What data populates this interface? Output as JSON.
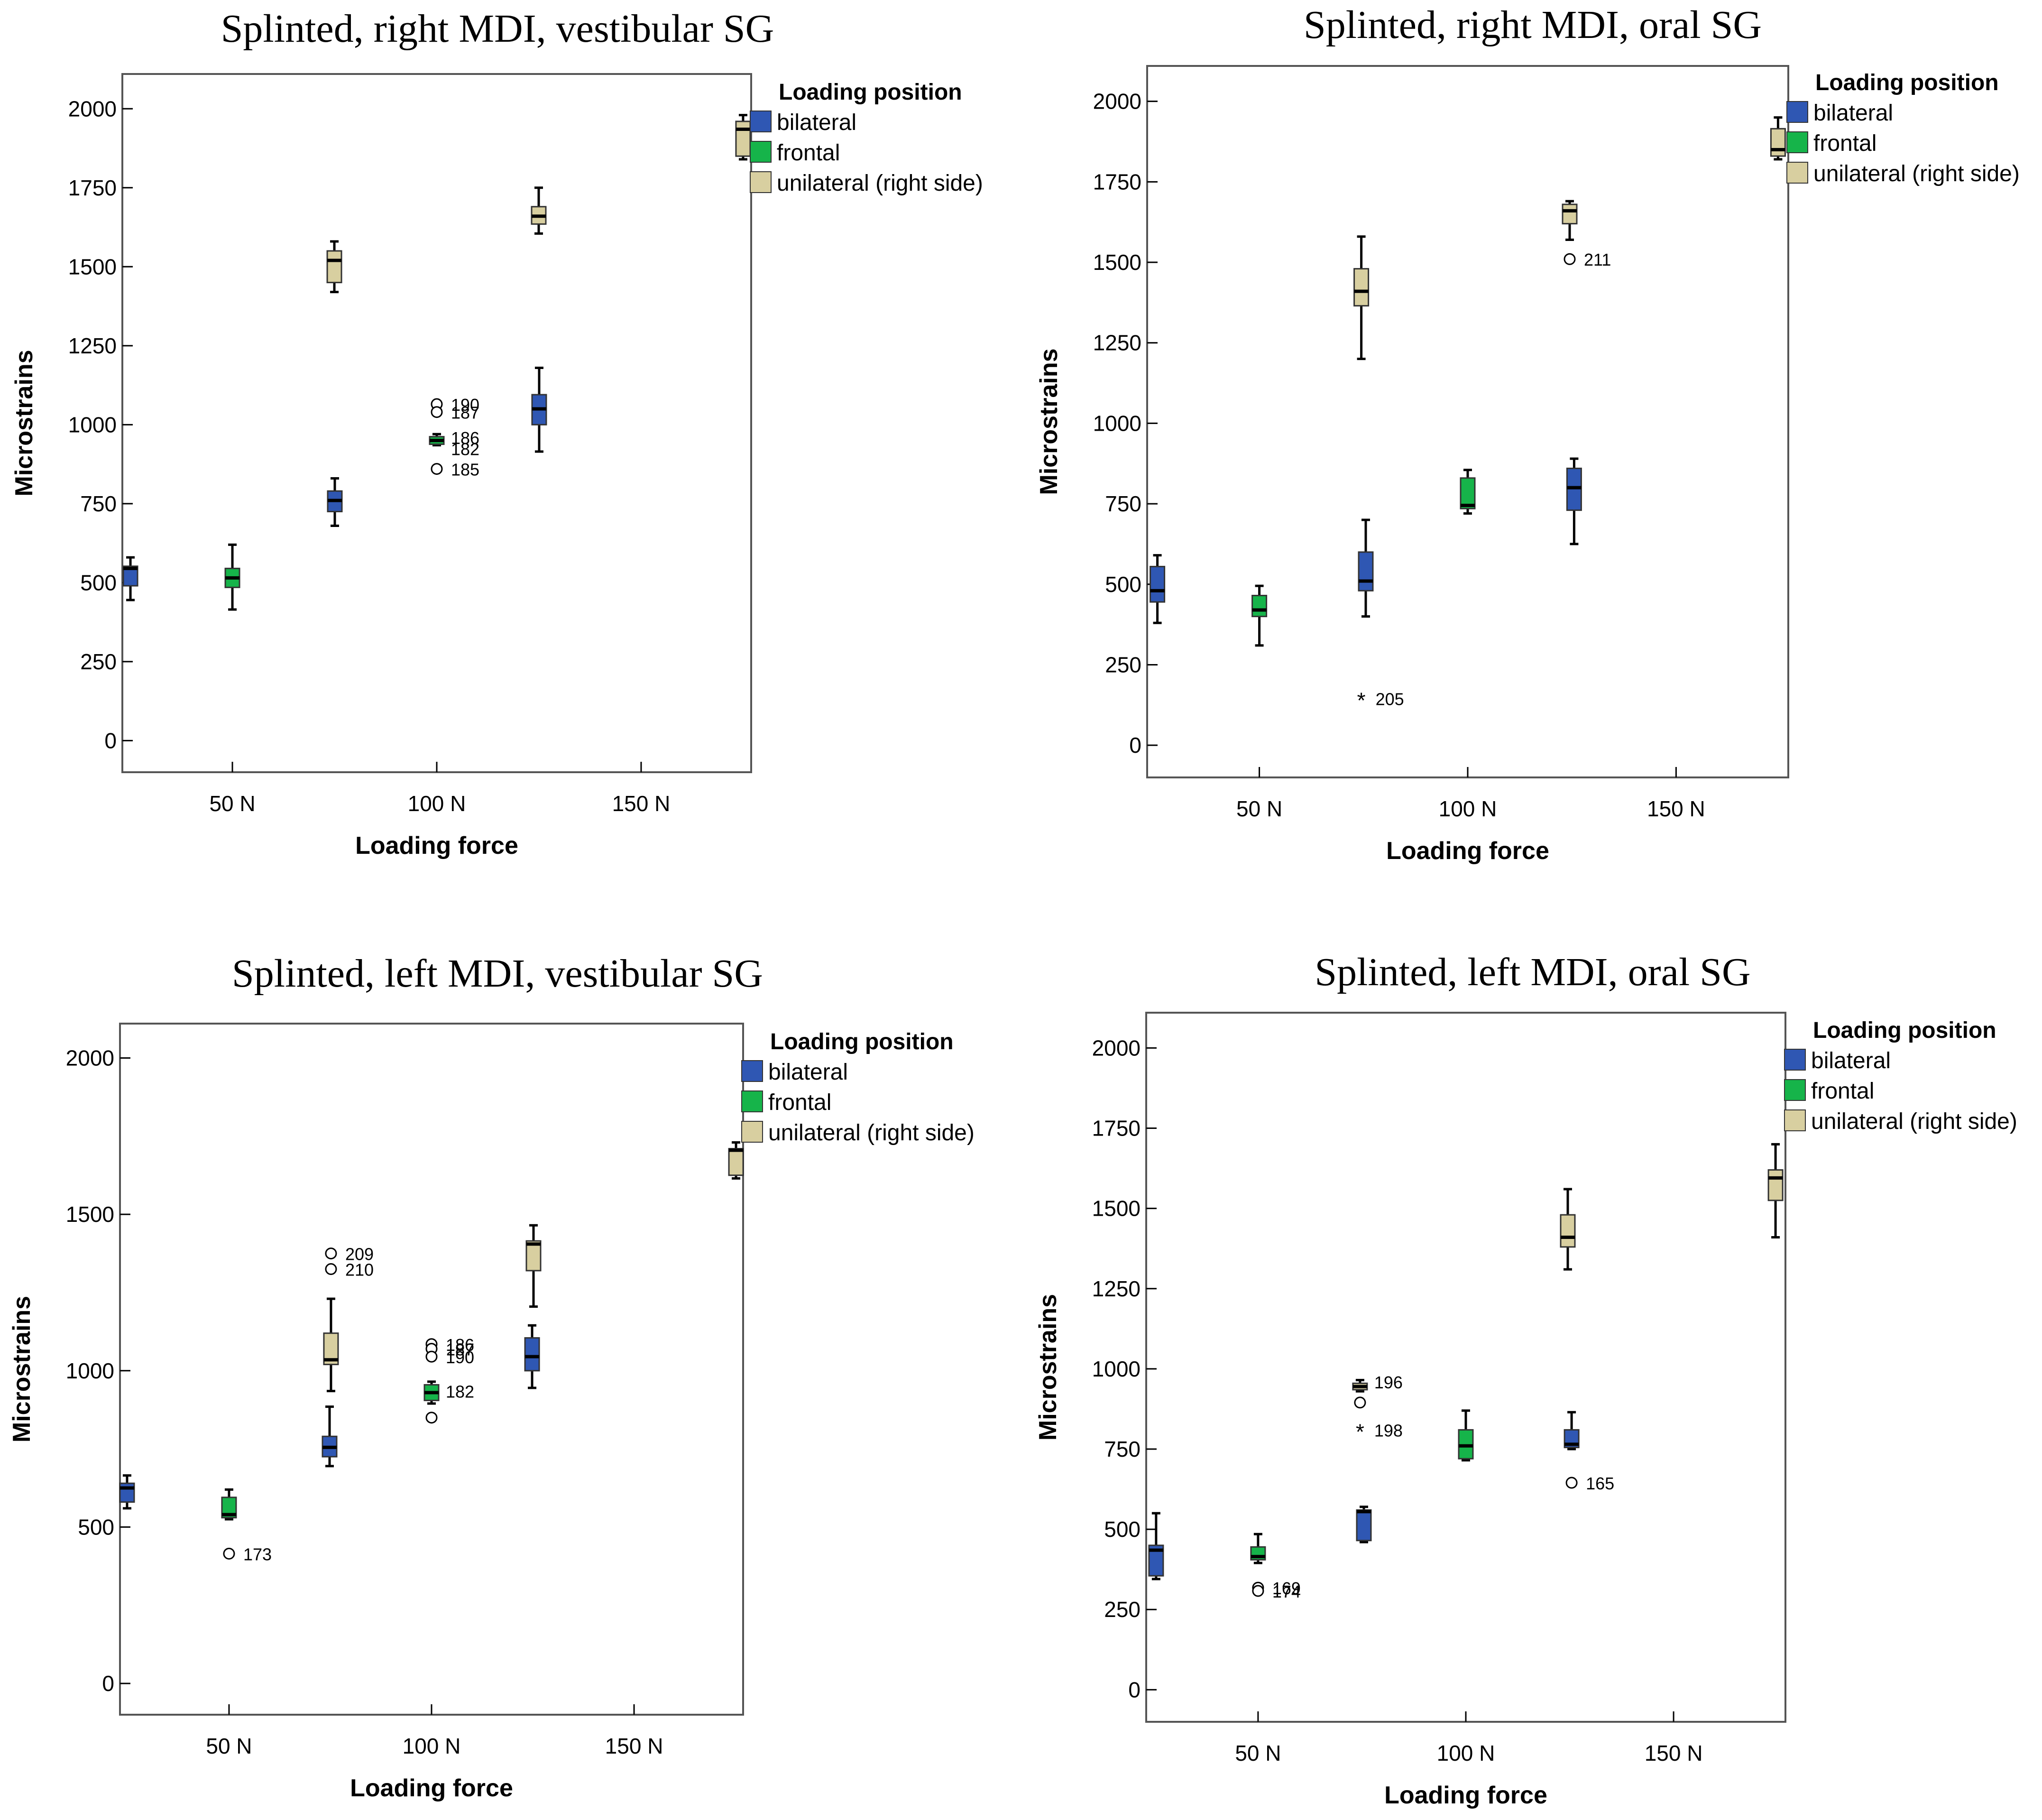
{
  "legend_title": "Loading position",
  "y_axis_label": "Microstrains",
  "x_axis_label": "Loading force",
  "colors": {
    "bilateral": "#2f57b3",
    "frontal": "#16b44a",
    "unilateral": "#d8cfa0",
    "frame": "#555555"
  },
  "chart_data": [
    {
      "type": "box",
      "title": "Splinted, right MDI, vestibular SG",
      "xlabel": "Loading force",
      "ylabel": "Microstrains",
      "categories": [
        "50 N",
        "100 N",
        "150 N"
      ],
      "yticks": [
        0,
        250,
        500,
        750,
        1000,
        1250,
        1500,
        1750,
        2000
      ],
      "ylim": [
        -100,
        2110
      ],
      "legend": {
        "title": "Loading position",
        "entries": [
          "bilateral",
          "frontal",
          "unilateral  (right side)"
        ]
      },
      "series": [
        {
          "name": "bilateral",
          "boxes": [
            {
              "category": "50 N",
              "min": 445,
              "q1": 490,
              "median": 545,
              "q3": 552,
              "max": 580
            },
            {
              "category": "100 N",
              "min": 680,
              "q1": 725,
              "median": 760,
              "q3": 790,
              "max": 830
            },
            {
              "category": "150 N",
              "min": 915,
              "q1": 1000,
              "median": 1050,
              "q3": 1095,
              "max": 1180
            }
          ]
        },
        {
          "name": "frontal",
          "boxes": [
            {
              "category": "50 N",
              "min": 415,
              "q1": 485,
              "median": 515,
              "q3": 545,
              "max": 620
            },
            {
              "category": "100 N",
              "min": 935,
              "q1": 938,
              "median": 950,
              "q3": 962,
              "max": 970,
              "outliers": [
                {
                  "value": 1065,
                  "label": "190",
                  "marker": "circle"
                },
                {
                  "value": 1040,
                  "label": "187",
                  "marker": "circle"
                },
                {
                  "value": 960,
                  "label": "186",
                  "marker": "none"
                },
                {
                  "value": 925,
                  "label": "182",
                  "marker": "none"
                },
                {
                  "value": 860,
                  "label": "185",
                  "marker": "circle"
                }
              ]
            }
          ]
        },
        {
          "name": "unilateral  (right side)",
          "boxes": [
            {
              "category": "50 N",
              "min": 1420,
              "q1": 1450,
              "median": 1520,
              "q3": 1550,
              "max": 1580
            },
            {
              "category": "100 N",
              "min": 1605,
              "q1": 1635,
              "median": 1660,
              "q3": 1690,
              "max": 1750
            },
            {
              "category": "150 N",
              "min": 1840,
              "q1": 1850,
              "median": 1935,
              "q3": 1960,
              "max": 1980
            }
          ]
        }
      ]
    },
    {
      "type": "box",
      "title": "Splinted, right MDI, oral SG",
      "xlabel": "Loading force",
      "ylabel": "Microstrains",
      "categories": [
        "50 N",
        "100 N",
        "150 N"
      ],
      "yticks": [
        0,
        250,
        500,
        750,
        1000,
        1250,
        1500,
        1750,
        2000
      ],
      "ylim": [
        -100,
        2110
      ],
      "legend": {
        "title": "Loading position",
        "entries": [
          "bilateral",
          "frontal",
          "unilateral  (right side)"
        ]
      },
      "series": [
        {
          "name": "bilateral",
          "boxes": [
            {
              "category": "50 N",
              "min": 380,
              "q1": 445,
              "median": 480,
              "q3": 555,
              "max": 590
            },
            {
              "category": "100 N",
              "min": 400,
              "q1": 480,
              "median": 510,
              "q3": 600,
              "max": 700
            },
            {
              "category": "150 N",
              "min": 625,
              "q1": 730,
              "median": 800,
              "q3": 860,
              "max": 890
            }
          ]
        },
        {
          "name": "frontal",
          "boxes": [
            {
              "category": "50 N",
              "min": 310,
              "q1": 400,
              "median": 420,
              "q3": 465,
              "max": 495
            },
            {
              "category": "100 N",
              "min": 720,
              "q1": 735,
              "median": 745,
              "q3": 830,
              "max": 855
            }
          ]
        },
        {
          "name": "unilateral  (right side)",
          "boxes": [
            {
              "category": "50 N",
              "min": 1200,
              "q1": 1365,
              "median": 1410,
              "q3": 1480,
              "max": 1580,
              "outliers": [
                {
                  "value": 145,
                  "label": "205",
                  "marker": "star"
                }
              ]
            },
            {
              "category": "100 N",
              "min": 1570,
              "q1": 1620,
              "median": 1660,
              "q3": 1680,
              "max": 1690,
              "outliers": [
                {
                  "value": 1510,
                  "label": "211",
                  "marker": "circle"
                }
              ]
            },
            {
              "category": "150 N",
              "min": 1820,
              "q1": 1830,
              "median": 1850,
              "q3": 1915,
              "max": 1950
            }
          ]
        }
      ]
    },
    {
      "type": "box",
      "title": "Splinted, left MDI, vestibular SG",
      "xlabel": "Loading force",
      "ylabel": "Microstrains",
      "categories": [
        "50 N",
        "100 N",
        "150 N"
      ],
      "yticks": [
        0,
        500,
        1000,
        1500,
        2000
      ],
      "ylim": [
        -100,
        2110
      ],
      "legend": {
        "title": "Loading position",
        "entries": [
          "bilateral",
          "frontal",
          "unilateral  (right side)"
        ]
      },
      "series": [
        {
          "name": "bilateral",
          "boxes": [
            {
              "category": "50 N",
              "min": 560,
              "q1": 580,
              "median": 625,
              "q3": 640,
              "max": 665
            },
            {
              "category": "100 N",
              "min": 695,
              "q1": 725,
              "median": 755,
              "q3": 790,
              "max": 885
            },
            {
              "category": "150 N",
              "min": 945,
              "q1": 1000,
              "median": 1045,
              "q3": 1105,
              "max": 1145
            }
          ]
        },
        {
          "name": "frontal",
          "boxes": [
            {
              "category": "50 N",
              "min": 525,
              "q1": 530,
              "median": 540,
              "q3": 595,
              "max": 620,
              "outliers": [
                {
                  "value": 415,
                  "label": "173",
                  "marker": "circle"
                }
              ]
            },
            {
              "category": "100 N",
              "min": 895,
              "q1": 905,
              "median": 930,
              "q3": 955,
              "max": 965,
              "outliers": [
                {
                  "value": 1085,
                  "label": "186",
                  "marker": "circle"
                },
                {
                  "value": 1070,
                  "label": "187",
                  "marker": "circle"
                },
                {
                  "value": 1045,
                  "label": "190",
                  "marker": "circle"
                },
                {
                  "value": 935,
                  "label": "182",
                  "marker": "none"
                },
                {
                  "value": 850,
                  "label": "",
                  "marker": "circle"
                }
              ]
            }
          ]
        },
        {
          "name": "unilateral  (right side)",
          "boxes": [
            {
              "category": "50 N",
              "min": 935,
              "q1": 1020,
              "median": 1035,
              "q3": 1120,
              "max": 1230,
              "outliers": [
                {
                  "value": 1375,
                  "label": "209",
                  "marker": "circle"
                },
                {
                  "value": 1325,
                  "label": "210",
                  "marker": "circle"
                }
              ]
            },
            {
              "category": "100 N",
              "min": 1205,
              "q1": 1320,
              "median": 1405,
              "q3": 1415,
              "max": 1465
            },
            {
              "category": "150 N",
              "min": 1615,
              "q1": 1625,
              "median": 1705,
              "q3": 1710,
              "max": 1730
            }
          ]
        }
      ]
    },
    {
      "type": "box",
      "title": "Splinted, left MDI, oral SG",
      "xlabel": "Loading force",
      "ylabel": "Microstrains",
      "categories": [
        "50 N",
        "100 N",
        "150 N"
      ],
      "yticks": [
        0,
        250,
        500,
        750,
        1000,
        1250,
        1500,
        1750,
        2000
      ],
      "ylim": [
        -100,
        2110
      ],
      "legend": {
        "title": "Loading position",
        "entries": [
          "bilateral",
          "frontal",
          "unilateral  (right side)"
        ]
      },
      "series": [
        {
          "name": "bilateral",
          "boxes": [
            {
              "category": "50 N",
              "min": 345,
              "q1": 355,
              "median": 435,
              "q3": 450,
              "max": 550
            },
            {
              "category": "100 N",
              "min": 460,
              "q1": 465,
              "median": 555,
              "q3": 560,
              "max": 570
            },
            {
              "category": "150 N",
              "min": 750,
              "q1": 755,
              "median": 765,
              "q3": 810,
              "max": 865,
              "outliers": [
                {
                  "value": 645,
                  "label": "165",
                  "marker": "circle"
                }
              ]
            }
          ]
        },
        {
          "name": "frontal",
          "boxes": [
            {
              "category": "50 N",
              "min": 395,
              "q1": 405,
              "median": 415,
              "q3": 445,
              "max": 485,
              "outliers": [
                {
                  "value": 318,
                  "label": "169",
                  "marker": "circle"
                },
                {
                  "value": 308,
                  "label": "174",
                  "marker": "circle"
                }
              ]
            },
            {
              "category": "100 N",
              "min": 715,
              "q1": 720,
              "median": 760,
              "q3": 810,
              "max": 870
            }
          ]
        },
        {
          "name": "unilateral  (right side)",
          "boxes": [
            {
              "category": "50 N",
              "min": 930,
              "q1": 935,
              "median": 945,
              "q3": 955,
              "max": 965,
              "outliers": [
                {
                  "value": 960,
                  "label": "196",
                  "marker": "none"
                },
                {
                  "value": 895,
                  "label": "",
                  "marker": "circle"
                },
                {
                  "value": 810,
                  "label": "198",
                  "marker": "star"
                }
              ]
            },
            {
              "category": "100 N",
              "min": 1310,
              "q1": 1380,
              "median": 1410,
              "q3": 1480,
              "max": 1560
            },
            {
              "category": "150 N",
              "min": 1410,
              "q1": 1525,
              "median": 1595,
              "q3": 1620,
              "max": 1700
            }
          ]
        }
      ]
    }
  ]
}
